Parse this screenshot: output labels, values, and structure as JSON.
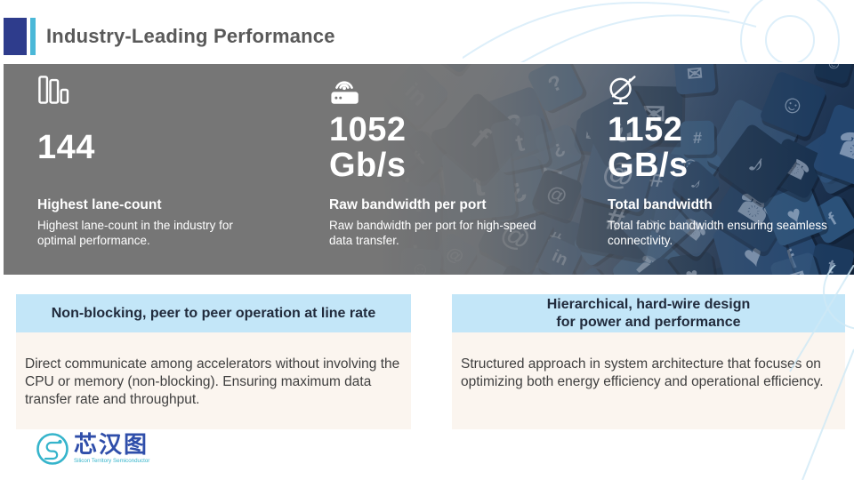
{
  "header": {
    "title": "Industry-Leading Performance"
  },
  "stats": {
    "items": [
      {
        "icon": "bar-chart-icon",
        "value": "144",
        "unit": "",
        "label": "Highest lane-count",
        "description": "Highest lane-count in the industry for optimal performance."
      },
      {
        "icon": "router-icon",
        "value": "1052",
        "unit": "Gb/s",
        "label": "Raw bandwidth per port",
        "description": "Raw bandwidth per port for high-speed data transfer."
      },
      {
        "icon": "satellite-dish-icon",
        "value": "1152",
        "unit": "GB/s",
        "label": "Total bandwidth",
        "description": "Total fabric bandwidth ensuring seamless connectivity."
      }
    ]
  },
  "features": {
    "left": {
      "header": "Non-blocking, peer to peer operation at line rate",
      "body": "Direct communicate among accelerators without involving the CPU or memory (non-blocking). Ensuring maximum data transfer rate and throughput."
    },
    "right": {
      "header_line1": "Hierarchical, hard-wire design",
      "header_line2": "for power and performance",
      "body": "Structured approach in system architecture that focuses on optimizing both energy efficiency and operational efficiency."
    }
  },
  "logo": {
    "name_cn": "芯汉图",
    "tagline": "Silicon Territory Semiconductor"
  },
  "colors": {
    "accent_dark_blue": "#2e3c8c",
    "accent_cyan": "#4bb8d8",
    "band_gray": "#767676",
    "header_blue": "#c3e6f8",
    "body_beige": "#fbf5ef",
    "title_gray": "#595959",
    "photo_navy": "#1f3555",
    "logo_blue": "#2f4eaa",
    "logo_teal": "#35b4cb"
  },
  "decor": {
    "photo_glyphs": [
      "@",
      "?",
      "#",
      "♪",
      "✉",
      "☎",
      "♥",
      "☺",
      "f",
      "t",
      "in",
      "¿"
    ]
  }
}
